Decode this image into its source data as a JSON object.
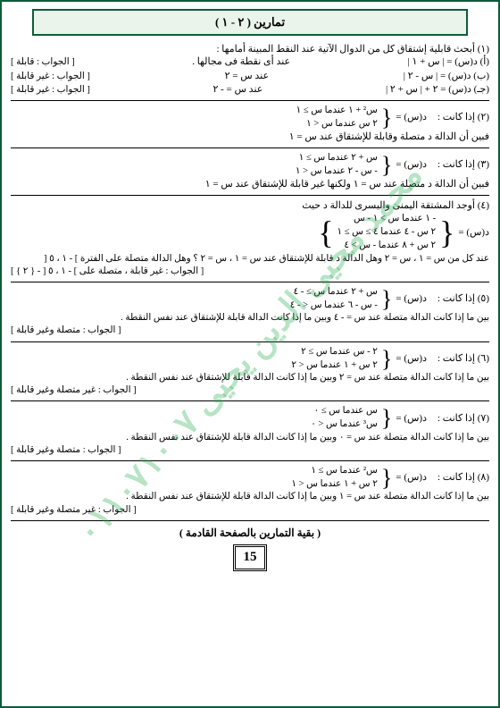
{
  "page": {
    "title": "تمارين ( ۲ - ۱ )",
    "number": "15",
    "footer": "( بقية التمارين بالصفحة القادمة )"
  },
  "watermark": "محمد محيى الدين يحيى ۰۱۱۰۷۱۰۰۷",
  "q1": {
    "head": "(۱) أبحث قابلية إشتقاق كل من الدوال الآتية عند النقط المبينة أمامها :",
    "a": {
      "fn": "(أ) د(س) = | س + ١ |",
      "pt": "عند أى نقطة فى مجالها .",
      "ans": "[ الجواب : قابلة ]"
    },
    "b": {
      "fn": "(ب) د(س) = | س - ٢ |",
      "pt": "عند س = ٢",
      "ans": "[ الجواب : غير قابلة ]"
    },
    "c": {
      "fn": "(جـ) د(س) = ٢ + | س + ٢ |",
      "pt": "عند س = - ٢",
      "ans": "[ الجواب : غير قابلة ]"
    }
  },
  "q2": {
    "head": "(۲) إذا كانت :",
    "dlabel": "د(س) =",
    "r1": "س² + ١   عندما  س ≥ ١",
    "r2": "٢ س     عندما  س < ١",
    "tail": "فبين أن الدالة د متصلة وقابلة للإشتقاق عند س = ١"
  },
  "q3": {
    "head": "(۳) إذا كانت :",
    "dlabel": "د(س) =",
    "r1": "س + ٢     عندما  س ≥ ١",
    "r2": "- س - ٢   عندما  س < ١",
    "tail": "فبين أن الدالة د متصلة عند س = ١ ولكنها غير قابلة للإشتقاق عند س = ١"
  },
  "q4": {
    "head": "(٤) أوجد المشتقة اليمنى واليسرى للدالة د حيث",
    "dlabel": "د(س) =",
    "r1": "- ١        عندما   س > ١ - س",
    "r2": "٢ س - ٤   عندما   ٤ ≥ س ≥ ١",
    "r3": "٢ س + ٨   عندما   - س > ٤",
    "l2a": "عند كل من س = ١ ، س = ٢ وهل الدالة د قابلة للإشتقاق عند س = ١ ، س = ٢ ؟ وهل الدالة متصلة على الفترة ] - ١ ، ٥ [",
    "ans": "[ الجواب : غير قابلة ، متصلة على ] - ١ ، ٥ [ - { ٢ } ]"
  },
  "q5": {
    "head": "(٥) إذا كانت :",
    "dlabel": "د(س) =",
    "r1": "س + ٢     عندما  س ≥ - ٤",
    "r2": "- س - ٦   عندما  س < - ٤",
    "l2": "بين ما إذا كانت الدالة متصلة عند س = - ٤ وبين ما إذا كانت الدالة قابلة للإشتقاق عند نفس النقطة .",
    "ans": "[ الجواب : متصلة وغير قابلة ]"
  },
  "q6": {
    "head": "(٦) إذا كانت :",
    "dlabel": "د(س) =",
    "r1": "٢ - س     عندما  س ≥ ٢",
    "r2": "٢ س + ١   عندما  س < ٢",
    "l2": "بين ما إذا كانت الدالة متصلة عند س = ٢ وبين ما إذا كانت الدالة قابلة للإشتقاق عند نفس النقطة .",
    "ans": "[ الجواب : غير متصلة وغير قابلة ]"
  },
  "q7": {
    "head": "(٧) إذا كانت :",
    "dlabel": "د(س) =",
    "r1": "س     عندما  س ≥ ٠",
    "r2": "س³    عندما  س < ٠",
    "l2": "بين ما إذا كانت الدالة متصلة عند س = ٠ وبين ما إذا كانت الدالة قابلة للإشتقاق عند نفس النقطة .",
    "ans": "[ الجواب : متصلة وغير قابلة ]"
  },
  "q8": {
    "head": "(٨) إذا كانت :",
    "dlabel": "د(س) =",
    "r1": "س²        عندما  س ≥ ١",
    "r2": "٢ س + ١   عندما  س < ١",
    "l2": "بين ما إذا كانت الدالة متصلة عند س = ١ وبين ما إذا كانت الدالة قابلة للإشتقاق عند نفس النقطة .",
    "ans": "[ الجواب : غير متصلة وغير قابلة ]"
  }
}
